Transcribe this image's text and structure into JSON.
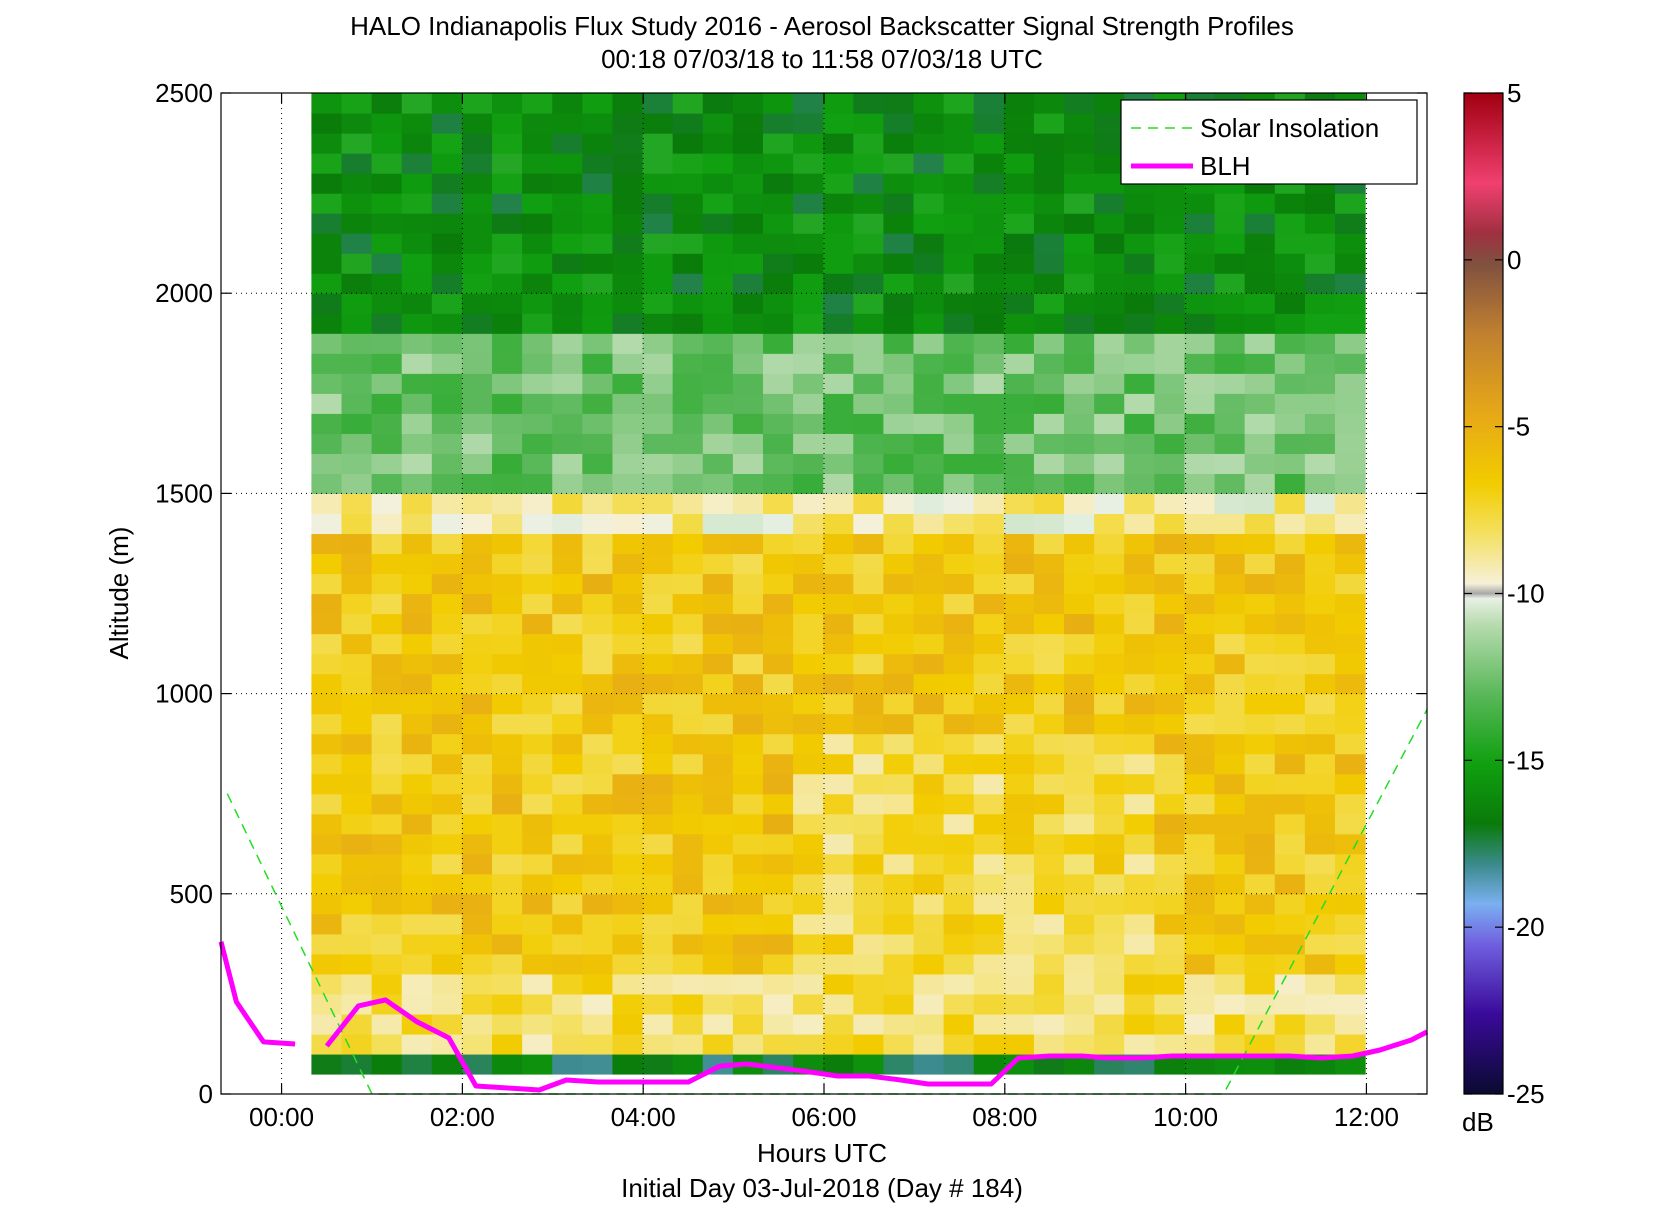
{
  "chart_data": {
    "type": "heatmap",
    "title": "HALO Indianapolis Flux Study 2016 - Aerosol Backscatter Signal Strength Profiles",
    "subtitle": "00:18 07/03/18 to 11:58 07/03/18  UTC",
    "xlabel": "Hours UTC",
    "xlabel2": "Initial Day 03-Jul-2018 (Day # 184)",
    "ylabel": "Altitude (m)",
    "xlim": [
      -0.67,
      12.67
    ],
    "ylim": [
      0,
      2500
    ],
    "x_ticks": [
      0,
      2,
      4,
      6,
      8,
      10,
      12
    ],
    "x_tick_labels": [
      "00:00",
      "02:00",
      "04:00",
      "06:00",
      "08:00",
      "10:00",
      "12:00"
    ],
    "y_ticks": [
      0,
      500,
      1000,
      1500,
      2000,
      2500
    ],
    "y_tick_labels": [
      "0",
      "500",
      "1000",
      "1500",
      "2000",
      "2500"
    ],
    "grid": true,
    "grid_style": "dotted",
    "legend_position": "top-right",
    "colorbar": {
      "range": [
        -25,
        5
      ],
      "ticks": [
        5,
        0,
        -5,
        -10,
        -15,
        -20,
        -25
      ],
      "tick_labels": [
        "5",
        "0",
        "-5",
        "-10",
        "-15",
        "-20",
        "-25"
      ],
      "unit": "dB"
    },
    "series": [
      {
        "name": "Solar Insolation",
        "style": "dashed",
        "color": "#22dd22",
        "x": [
          -0.6,
          1.0,
          10.42,
          12.67
        ],
        "y": [
          750,
          0,
          0,
          960
        ]
      },
      {
        "name": "BLH",
        "style": "solid",
        "color": "#ff00ff",
        "x": [
          -0.67,
          -0.5,
          -0.2,
          0.15,
          null,
          0.5,
          0.85,
          1.15,
          1.5,
          1.85,
          2.15,
          2.5,
          2.85,
          3.15,
          3.5,
          3.85,
          4.15,
          4.5,
          4.85,
          5.15,
          5.5,
          5.85,
          6.15,
          6.5,
          6.85,
          7.15,
          7.5,
          7.85,
          8.15,
          8.5,
          8.85,
          9.15,
          9.5,
          9.85,
          10.15,
          10.5,
          10.85,
          11.15,
          11.5,
          11.85,
          12.15,
          12.5,
          12.67
        ],
        "y": [
          380,
          230,
          130,
          125,
          null,
          120,
          220,
          235,
          180,
          140,
          20,
          15,
          10,
          35,
          30,
          30,
          30,
          30,
          70,
          75,
          65,
          55,
          45,
          45,
          35,
          25,
          25,
          25,
          90,
          95,
          95,
          90,
          90,
          95,
          95,
          95,
          95,
          95,
          90,
          95,
          110,
          135,
          155
        ]
      }
    ],
    "heatmap": {
      "x_start": 0.33,
      "x_step": 0.333,
      "x_count": 35,
      "y_start": 50,
      "y_step": 50,
      "y_count": 49,
      "background_levels": [
        {
          "y_from": 50,
          "y_to": 100,
          "dB": -17
        },
        {
          "y_from": 100,
          "y_to": 300,
          "dB": -8
        },
        {
          "y_from": 300,
          "y_to": 1400,
          "dB": -6.5
        },
        {
          "y_from": 1400,
          "y_to": 1500,
          "dB": -9
        },
        {
          "y_from": 1500,
          "y_to": 1900,
          "dB": -12.5
        },
        {
          "y_from": 1900,
          "y_to": 2500,
          "dB": -16
        }
      ]
    }
  },
  "legend": {
    "solar": "Solar Insolation",
    "blh": "BLH"
  },
  "colors": {
    "blh": "#ff00ff",
    "solar": "#22dd22"
  }
}
